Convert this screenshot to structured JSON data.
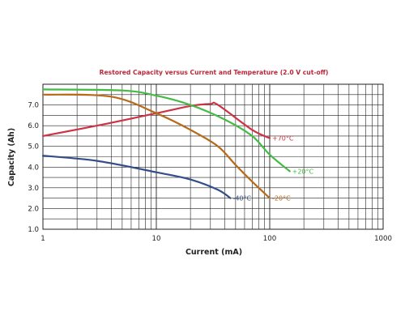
{
  "chart_data": {
    "type": "line",
    "title": "Restored Capacity versus Current and Temperature (2.0 V cut-off)",
    "xlabel": "Current (mA)",
    "ylabel": "Capacity (Ah)",
    "x_scale": "log",
    "xlim": [
      1,
      1000
    ],
    "ylim": [
      1.0,
      8.0
    ],
    "x_ticks": [
      "1",
      "10",
      "100",
      "1000"
    ],
    "y_ticks": [
      "1.0",
      "2.0",
      "3.0",
      "4.0",
      "5.0",
      "6.0",
      "7.0"
    ],
    "grid": true,
    "legend": "inline labels at line ends",
    "series": [
      {
        "name": "+70°C",
        "color": "#cc3344",
        "x": [
          1,
          3,
          10,
          20,
          30,
          35,
          70,
          100
        ],
        "y": [
          5.5,
          6.0,
          6.6,
          6.95,
          7.05,
          7.0,
          5.8,
          5.4
        ]
      },
      {
        "name": "+20°C",
        "color": "#44bb44",
        "x": [
          1,
          5,
          10,
          20,
          40,
          70,
          100,
          150
        ],
        "y": [
          7.75,
          7.7,
          7.45,
          7.0,
          6.3,
          5.5,
          4.6,
          3.8
        ]
      },
      {
        "name": "-20°C",
        "color": "#b86a1a",
        "x": [
          1,
          4,
          10,
          20,
          35,
          50,
          70,
          100
        ],
        "y": [
          7.5,
          7.4,
          6.6,
          5.8,
          5.0,
          4.1,
          3.3,
          2.5
        ]
      },
      {
        "name": "-40°C",
        "color": "#334e88",
        "x": [
          1,
          3,
          10,
          20,
          35,
          45
        ],
        "y": [
          4.55,
          4.3,
          3.75,
          3.4,
          2.9,
          2.5
        ]
      }
    ]
  }
}
